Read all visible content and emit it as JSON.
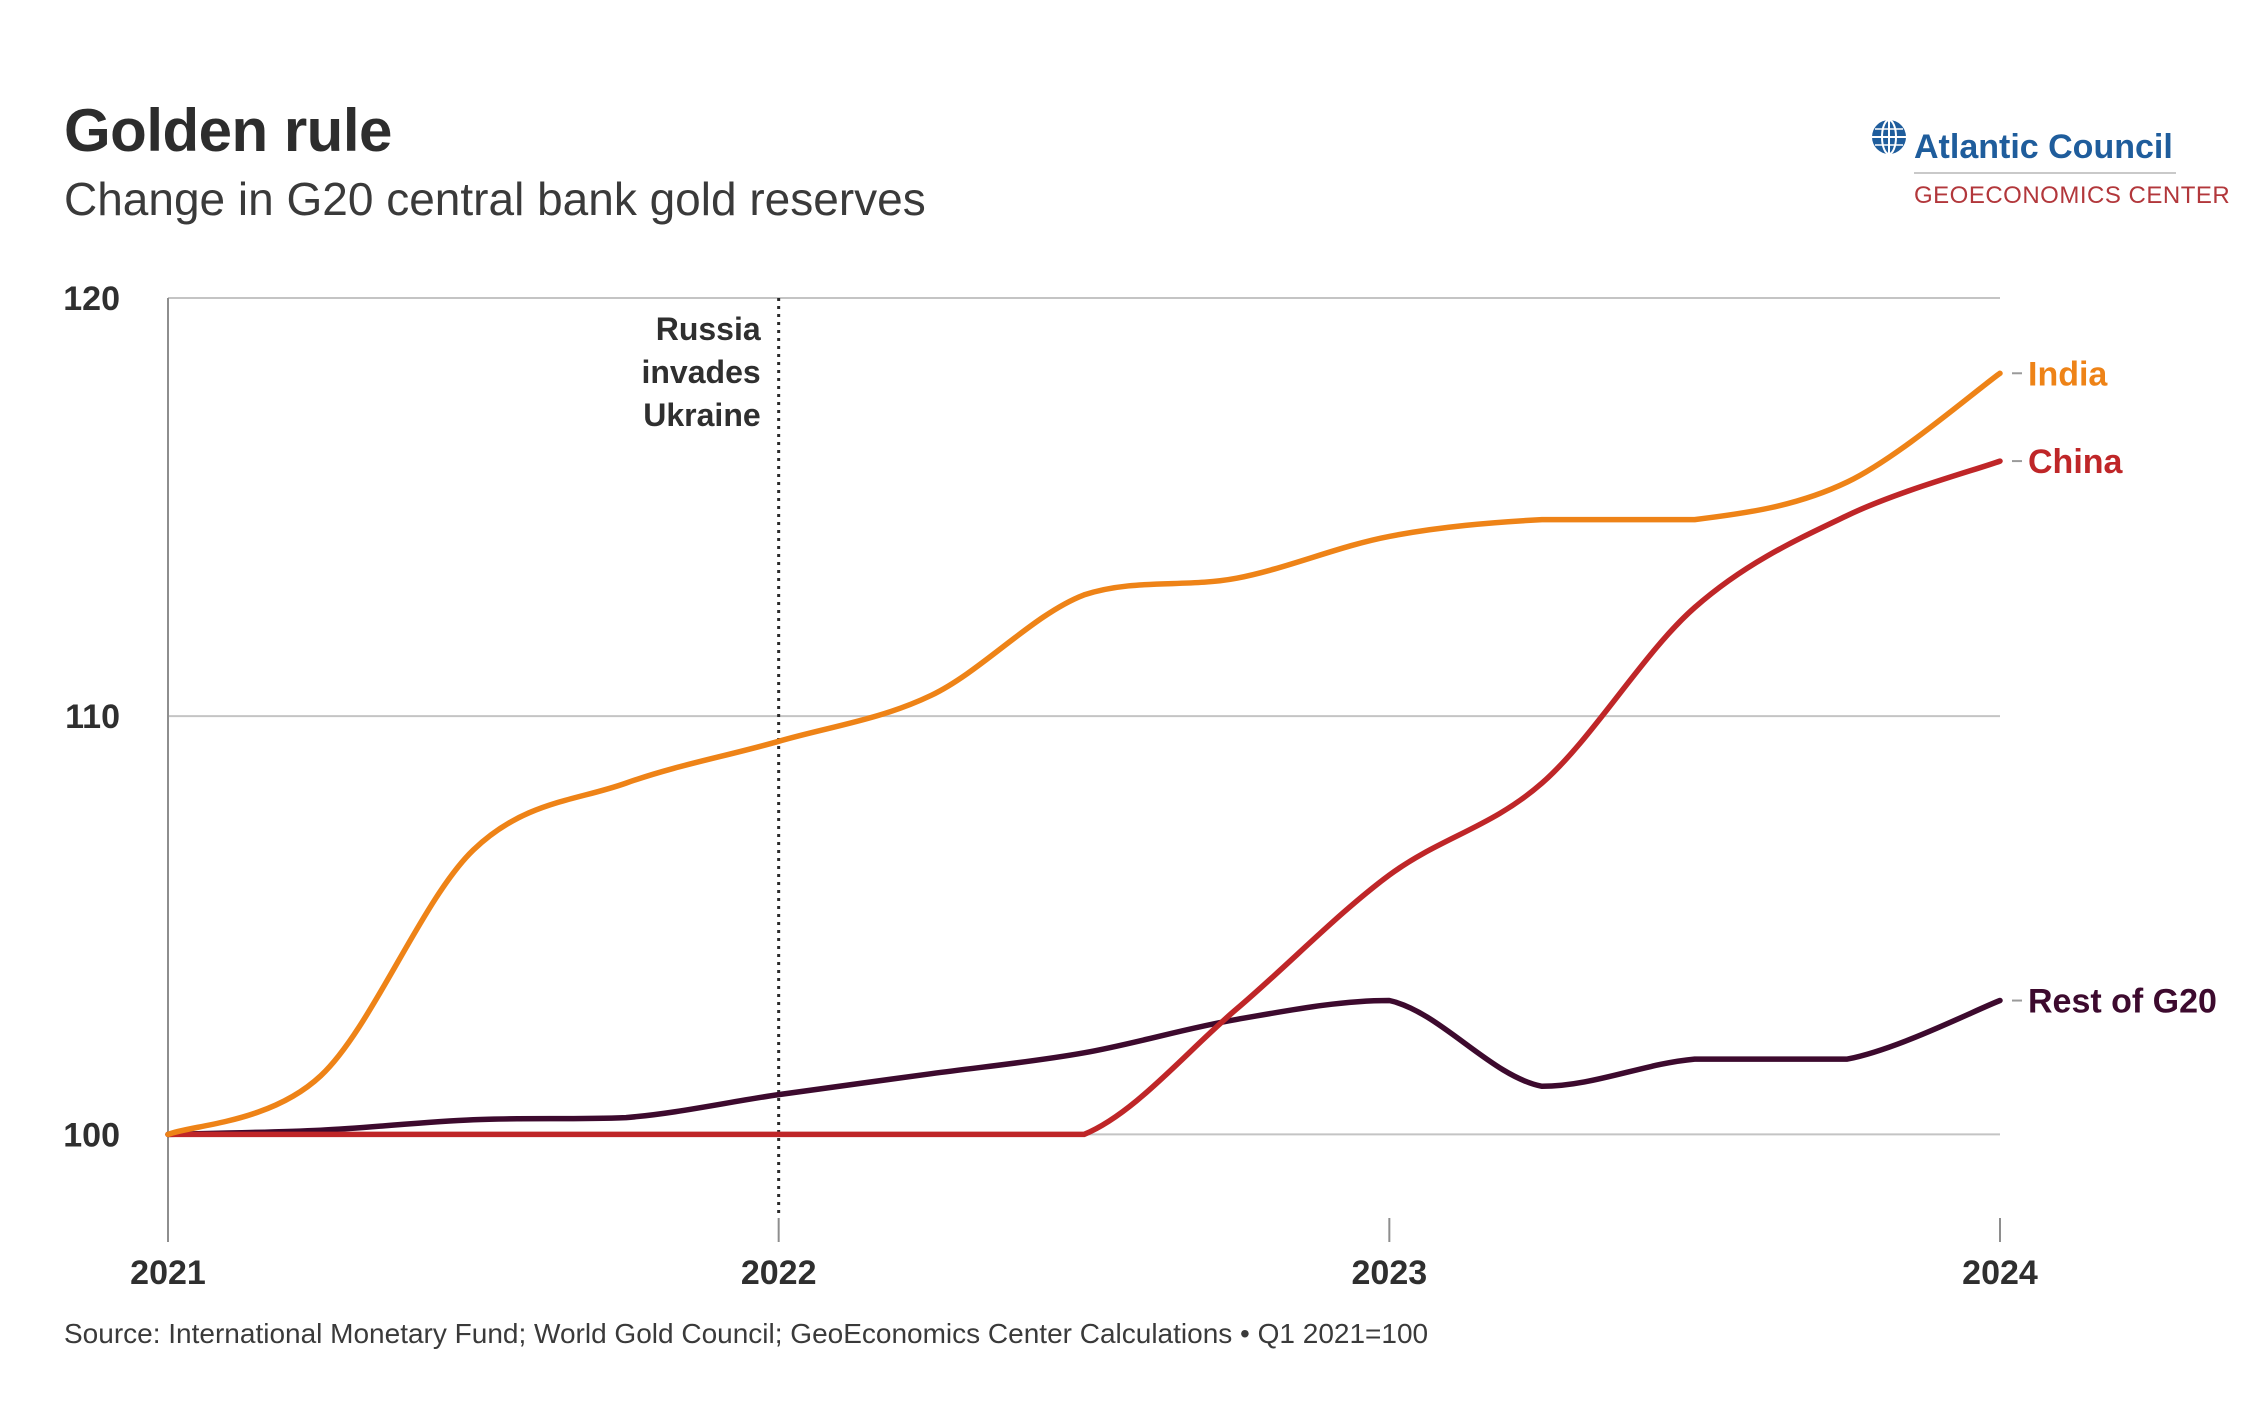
{
  "header": {
    "title": "Golden rule",
    "subtitle": "Change in G20 central bank gold reserves"
  },
  "logo": {
    "name": "Atlantic Council",
    "subname": "GEOECONOMICS CENTER",
    "icon": "globe-icon"
  },
  "footer": {
    "source": "Source: International Monetary Fund; World Gold Council; GeoEconomics Center Calculations • Q1 2021=100"
  },
  "colors": {
    "india": "#ee8317",
    "china": "#bf2628",
    "rest": "#3d0a2e",
    "grid": "#c4c4c4",
    "axis": "#8e8e8e",
    "text": "#2f2f2f",
    "brand_blue": "#1f5d9c",
    "brand_red": "#b2373b"
  },
  "chart_data": {
    "type": "line",
    "title": "Golden rule",
    "subtitle": "Change in G20 central bank gold reserves",
    "xlim": [
      2021,
      2024
    ],
    "ylim": [
      98,
      120
    ],
    "x_ticks": [
      2021,
      2022,
      2023,
      2024
    ],
    "x_tick_labels": [
      "2021",
      "2022",
      "2023",
      "2024"
    ],
    "y_ticks": [
      100,
      110,
      120
    ],
    "y_tick_labels": [
      "100",
      "110",
      "120"
    ],
    "grid": "horizontal",
    "legend": "labels at line ends (right)",
    "annotations": [
      {
        "x": 2022,
        "lines": [
          "Russia",
          "invades",
          "Ukraine"
        ],
        "style": "dotted vertical line"
      }
    ],
    "series": [
      {
        "name": "India",
        "color": "#ee8317",
        "x": [
          2021.0,
          2021.25,
          2021.5,
          2021.75,
          2022.0,
          2022.25,
          2022.5,
          2022.75,
          2023.0,
          2023.25,
          2023.5,
          2023.75,
          2024.0
        ],
        "values": [
          100.0,
          101.4,
          106.8,
          108.4,
          109.4,
          110.5,
          112.9,
          113.3,
          114.3,
          114.7,
          114.7,
          115.6,
          118.2
        ]
      },
      {
        "name": "China",
        "color": "#bf2628",
        "x": [
          2021.0,
          2021.25,
          2021.5,
          2021.75,
          2022.0,
          2022.25,
          2022.5,
          2022.75,
          2023.0,
          2023.25,
          2023.5,
          2023.75,
          2024.0
        ],
        "values": [
          100.0,
          100.0,
          100.0,
          100.0,
          100.0,
          100.0,
          100.0,
          103.0,
          106.2,
          108.4,
          112.6,
          114.8,
          116.1
        ]
      },
      {
        "name": "Rest of G20",
        "color": "#3d0a2e",
        "x": [
          2021.0,
          2021.25,
          2021.5,
          2021.75,
          2022.0,
          2022.25,
          2022.5,
          2022.75,
          2023.0,
          2023.25,
          2023.5,
          2023.75,
          2024.0
        ],
        "values": [
          100.0,
          100.1,
          100.35,
          100.4,
          100.95,
          101.45,
          101.95,
          102.75,
          103.2,
          101.15,
          101.8,
          101.8,
          103.2
        ]
      }
    ]
  }
}
